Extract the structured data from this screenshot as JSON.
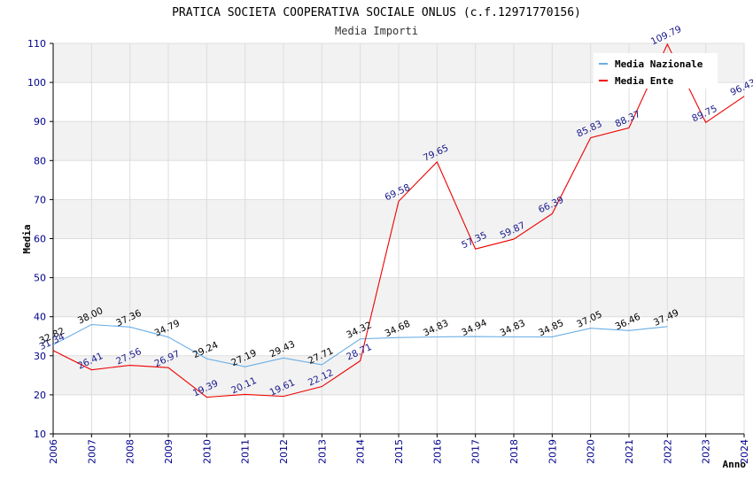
{
  "chart_data": {
    "type": "line",
    "title": "PRATICA SOCIETA COOPERATIVA SOCIALE ONLUS (c.f.12971770156)",
    "subtitle": "Media Importi",
    "xlabel": "Anno",
    "ylabel": "Media",
    "ylim": [
      10,
      110
    ],
    "yticks": [
      10,
      20,
      30,
      40,
      50,
      60,
      70,
      80,
      90,
      100,
      110
    ],
    "grid": true,
    "legend_position": "top-right",
    "x": [
      "2006",
      "2007",
      "2008",
      "2009",
      "2010",
      "2011",
      "2012",
      "2013",
      "2014",
      "2015",
      "2016",
      "2017",
      "2018",
      "2019",
      "2020",
      "2021",
      "2022",
      "2023",
      "2024"
    ],
    "series": [
      {
        "name": "Media Nazionale",
        "color": "#6aaee6",
        "label_color": "#000000",
        "values": [
          32.82,
          38.0,
          37.36,
          34.79,
          29.24,
          27.19,
          29.43,
          27.71,
          34.32,
          34.68,
          34.83,
          34.94,
          34.83,
          34.85,
          37.05,
          36.46,
          37.49,
          null,
          null
        ],
        "labels": [
          "32.82",
          "38.00",
          "37.36",
          "34.79",
          "29.24",
          "27.19",
          "29.43",
          "27.71",
          "34.32",
          "34.68",
          "34.83",
          "34.94",
          "34.83",
          "34.85",
          "37.05",
          "36.46",
          "37.49",
          "",
          ""
        ]
      },
      {
        "name": "Media Ente",
        "color": "#ee0000",
        "label_color": "#1a1a8c",
        "values": [
          31.34,
          26.41,
          27.56,
          26.97,
          19.39,
          20.11,
          19.61,
          22.12,
          28.71,
          69.58,
          79.65,
          57.35,
          59.87,
          66.39,
          85.83,
          88.37,
          109.79,
          89.75,
          96.43
        ],
        "labels": [
          "31.34",
          "26.41",
          "27.56",
          "26.97",
          "19.39",
          "20.11",
          "19.61",
          "22.12",
          "28.71",
          "69.58",
          "79.65",
          "57.35",
          "59.87",
          "66.39",
          "85.83",
          "88.37",
          "109.79",
          "89.75",
          "96.43"
        ]
      }
    ]
  }
}
